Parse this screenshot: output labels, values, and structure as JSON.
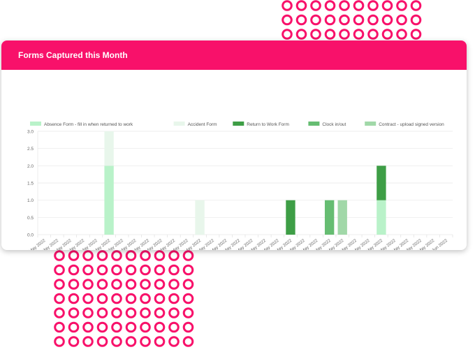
{
  "card": {
    "title": "Forms Captured this Month"
  },
  "colors": {
    "header": "#f8116a",
    "ring": "#f8116a"
  },
  "chart_data": {
    "type": "bar",
    "stacked": true,
    "title": "",
    "xlabel": "",
    "ylabel": "",
    "ylim": [
      0,
      3
    ],
    "yticks": [
      "0.0",
      "0.5",
      "1.0",
      "1.5",
      "2.0",
      "2.5",
      "3.0"
    ],
    "grid": true,
    "legend_position": "top",
    "categories": [
      "Sun 01 May 2022",
      "Mon 02 May 2022",
      "Tue 03 May 2022",
      "Wed 04 May 2022",
      "Thu 05 May 2022",
      "Fri 06 May 2022",
      "Sat 07 May 2022",
      "Sun 08 May 2022",
      "Mon 09 May 2022",
      "Tue 10 May 2022",
      "Wed 11 May 2022",
      "Thu 12 May 2022",
      "Fri 13 May 2022",
      "Sat 14 May 2022",
      "Sun 15 May 2022",
      "Mon 16 May 2022",
      "Tue 17 May 2022",
      "Wed 18 May 2022",
      "Thu 19 May 2022",
      "Fri 20 May 2022",
      "Sat 21 May 2022",
      "Sun 22 May 2022",
      "Mon 23 May 2022",
      "Tue 24 May 2022",
      "Wed 25 May 2022",
      "Thu 26 May 2022",
      "Fri 27 May 2022",
      "Sat 28 May 2022",
      "Sun 29 May 2022",
      "Mon 30 May 2022",
      "Tue 31 May 2022",
      "Wed 01 Jun 2022"
    ],
    "series": [
      {
        "name": "Absence Form - fill in when returned to work",
        "color": "#b9f2c9",
        "values": [
          0,
          0,
          0,
          0,
          0,
          2,
          0,
          0,
          0,
          0,
          0,
          0,
          0,
          0,
          0,
          0,
          0,
          0,
          0,
          0,
          0,
          0,
          0,
          0,
          0,
          0,
          1,
          0,
          0,
          0,
          0,
          0
        ]
      },
      {
        "name": "Accident Form",
        "color": "#e8f6eb",
        "values": [
          0,
          0,
          0,
          0,
          0,
          1,
          0,
          0,
          0,
          0,
          0,
          0,
          1,
          0,
          0,
          0,
          0,
          0,
          0,
          0,
          0,
          0,
          0,
          0,
          0,
          0,
          0,
          0,
          0,
          0,
          0,
          0
        ]
      },
      {
        "name": "Return to Work Form",
        "color": "#3e9e46",
        "values": [
          0,
          0,
          0,
          0,
          0,
          0,
          0,
          0,
          0,
          0,
          0,
          0,
          0,
          0,
          0,
          0,
          0,
          0,
          0,
          1,
          0,
          0,
          0,
          0,
          0,
          0,
          1,
          0,
          0,
          0,
          0,
          0
        ]
      },
      {
        "name": "Clock in/out",
        "color": "#66bd72",
        "values": [
          0,
          0,
          0,
          0,
          0,
          0,
          0,
          0,
          0,
          0,
          0,
          0,
          0,
          0,
          0,
          0,
          0,
          0,
          0,
          0,
          0,
          0,
          1,
          0,
          0,
          0,
          0,
          0,
          0,
          0,
          0,
          0
        ]
      },
      {
        "name": "Contract - upload signed version",
        "color": "#a1d8a8",
        "values": [
          0,
          0,
          0,
          0,
          0,
          0,
          0,
          0,
          0,
          0,
          0,
          0,
          0,
          0,
          0,
          0,
          0,
          0,
          0,
          0,
          0,
          0,
          0,
          1,
          0,
          0,
          0,
          0,
          0,
          0,
          0,
          0
        ]
      }
    ]
  }
}
